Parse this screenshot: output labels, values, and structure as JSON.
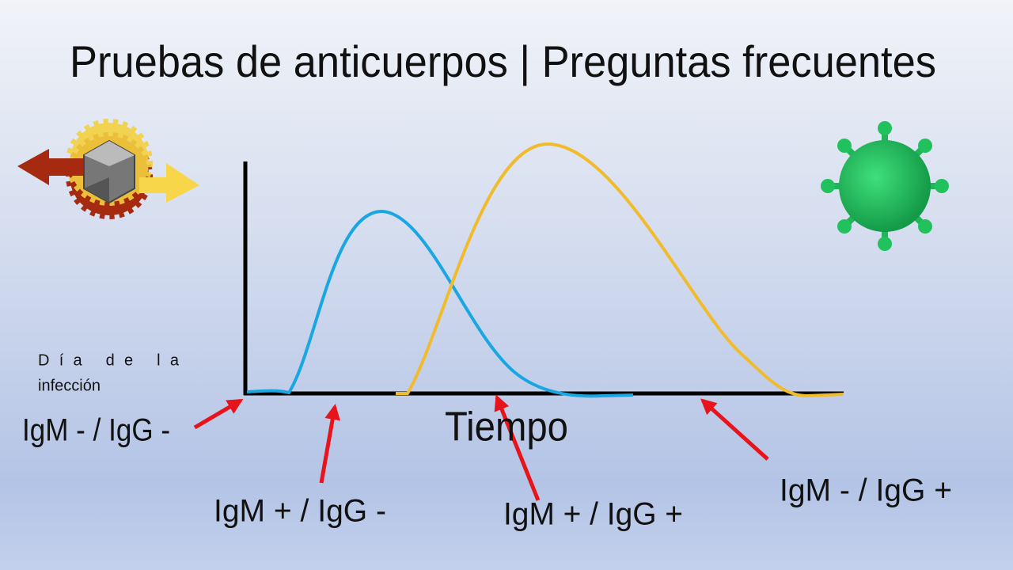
{
  "header": {
    "title": "Pruebas de anticuerpos | Preguntas frecuentes"
  },
  "diagram": {
    "axis_label": "Tiempo",
    "start_label": [
      "Día de la",
      "infección"
    ],
    "stages": [
      "IgM - / IgG -",
      "IgM + / IgG -",
      "IgM + / IgG +",
      "IgM - / IgG +"
    ]
  }
}
